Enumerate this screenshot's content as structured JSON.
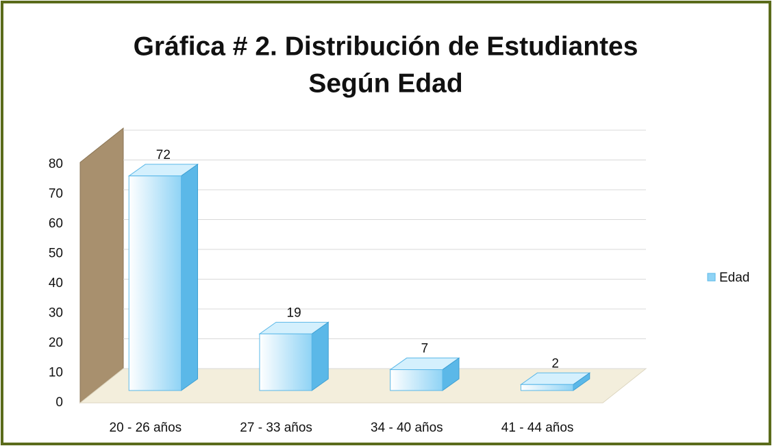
{
  "chart_data": {
    "type": "bar3d",
    "title": [
      "Gráfica # 2. Distribución de Estudiantes",
      "Según Edad"
    ],
    "categories": [
      "20 - 26 años",
      "27 - 33 años",
      "34 - 40 años",
      "41 - 44 años"
    ],
    "series": [
      {
        "name": "Edad",
        "color": "#8fd3f5",
        "values": [
          72,
          19,
          7,
          2
        ]
      }
    ],
    "ylim": [
      0,
      80
    ],
    "yticks": [
      0,
      10,
      20,
      30,
      40,
      50,
      60,
      70,
      80
    ],
    "grid": true,
    "legend": "right"
  }
}
